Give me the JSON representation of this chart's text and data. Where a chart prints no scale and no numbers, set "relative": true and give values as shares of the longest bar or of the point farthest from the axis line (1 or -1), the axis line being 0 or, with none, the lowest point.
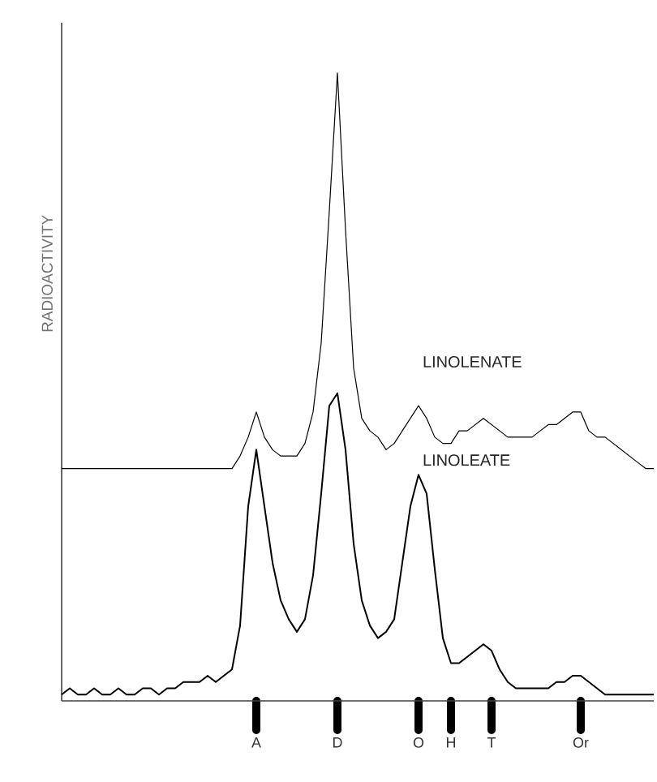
{
  "chart_data": {
    "type": "line",
    "relative": true,
    "ylabel": "RADIOACTIVITY",
    "legend": false,
    "marker": "none",
    "line_style": "solid",
    "categories": [
      null,
      null,
      null,
      null,
      null,
      null,
      null,
      null,
      null,
      null,
      null,
      null,
      null,
      null,
      null,
      null,
      null,
      null,
      null,
      null,
      null,
      null,
      null,
      null,
      "A",
      null,
      null,
      null,
      null,
      null,
      null,
      null,
      null,
      null,
      "D",
      null,
      null,
      null,
      null,
      null,
      null,
      null,
      null,
      null,
      "O",
      null,
      null,
      null,
      "H",
      null,
      null,
      null,
      null,
      "T",
      null,
      null,
      null,
      null,
      null,
      null,
      null,
      null,
      null,
      null,
      "Or",
      null,
      null,
      null,
      null,
      null,
      null,
      null,
      null,
      null
    ],
    "series": [
      {
        "name": "LINOLENATE",
        "color": "#000000",
        "values": [
          0.37,
          0.37,
          0.37,
          0.37,
          0.37,
          0.37,
          0.37,
          0.37,
          0.37,
          0.37,
          0.37,
          0.37,
          0.37,
          0.37,
          0.37,
          0.37,
          0.37,
          0.37,
          0.37,
          0.37,
          0.37,
          0.37,
          0.39,
          0.42,
          0.46,
          0.42,
          0.4,
          0.39,
          0.39,
          0.39,
          0.41,
          0.46,
          0.57,
          0.78,
          1.0,
          0.75,
          0.53,
          0.45,
          0.43,
          0.42,
          0.4,
          0.41,
          0.43,
          0.45,
          0.47,
          0.45,
          0.42,
          0.41,
          0.41,
          0.43,
          0.43,
          0.44,
          0.45,
          0.44,
          0.43,
          0.42,
          0.42,
          0.42,
          0.42,
          0.43,
          0.44,
          0.44,
          0.45,
          0.46,
          0.46,
          0.43,
          0.42,
          0.42,
          0.41,
          0.4,
          0.39,
          0.38,
          0.37,
          0.37
        ]
      },
      {
        "name": "LINOLEATE",
        "color": "#000000",
        "values": [
          0.01,
          0.02,
          0.01,
          0.01,
          0.02,
          0.01,
          0.01,
          0.02,
          0.01,
          0.01,
          0.02,
          0.02,
          0.01,
          0.02,
          0.02,
          0.03,
          0.03,
          0.03,
          0.04,
          0.03,
          0.04,
          0.05,
          0.12,
          0.31,
          0.4,
          0.31,
          0.22,
          0.16,
          0.13,
          0.11,
          0.13,
          0.2,
          0.33,
          0.47,
          0.49,
          0.4,
          0.25,
          0.16,
          0.12,
          0.1,
          0.11,
          0.13,
          0.22,
          0.31,
          0.36,
          0.33,
          0.21,
          0.1,
          0.06,
          0.06,
          0.07,
          0.08,
          0.09,
          0.08,
          0.05,
          0.03,
          0.02,
          0.02,
          0.02,
          0.02,
          0.02,
          0.03,
          0.03,
          0.04,
          0.04,
          0.03,
          0.02,
          0.01,
          0.01,
          0.01,
          0.01,
          0.01,
          0.01,
          0.01
        ]
      }
    ]
  }
}
